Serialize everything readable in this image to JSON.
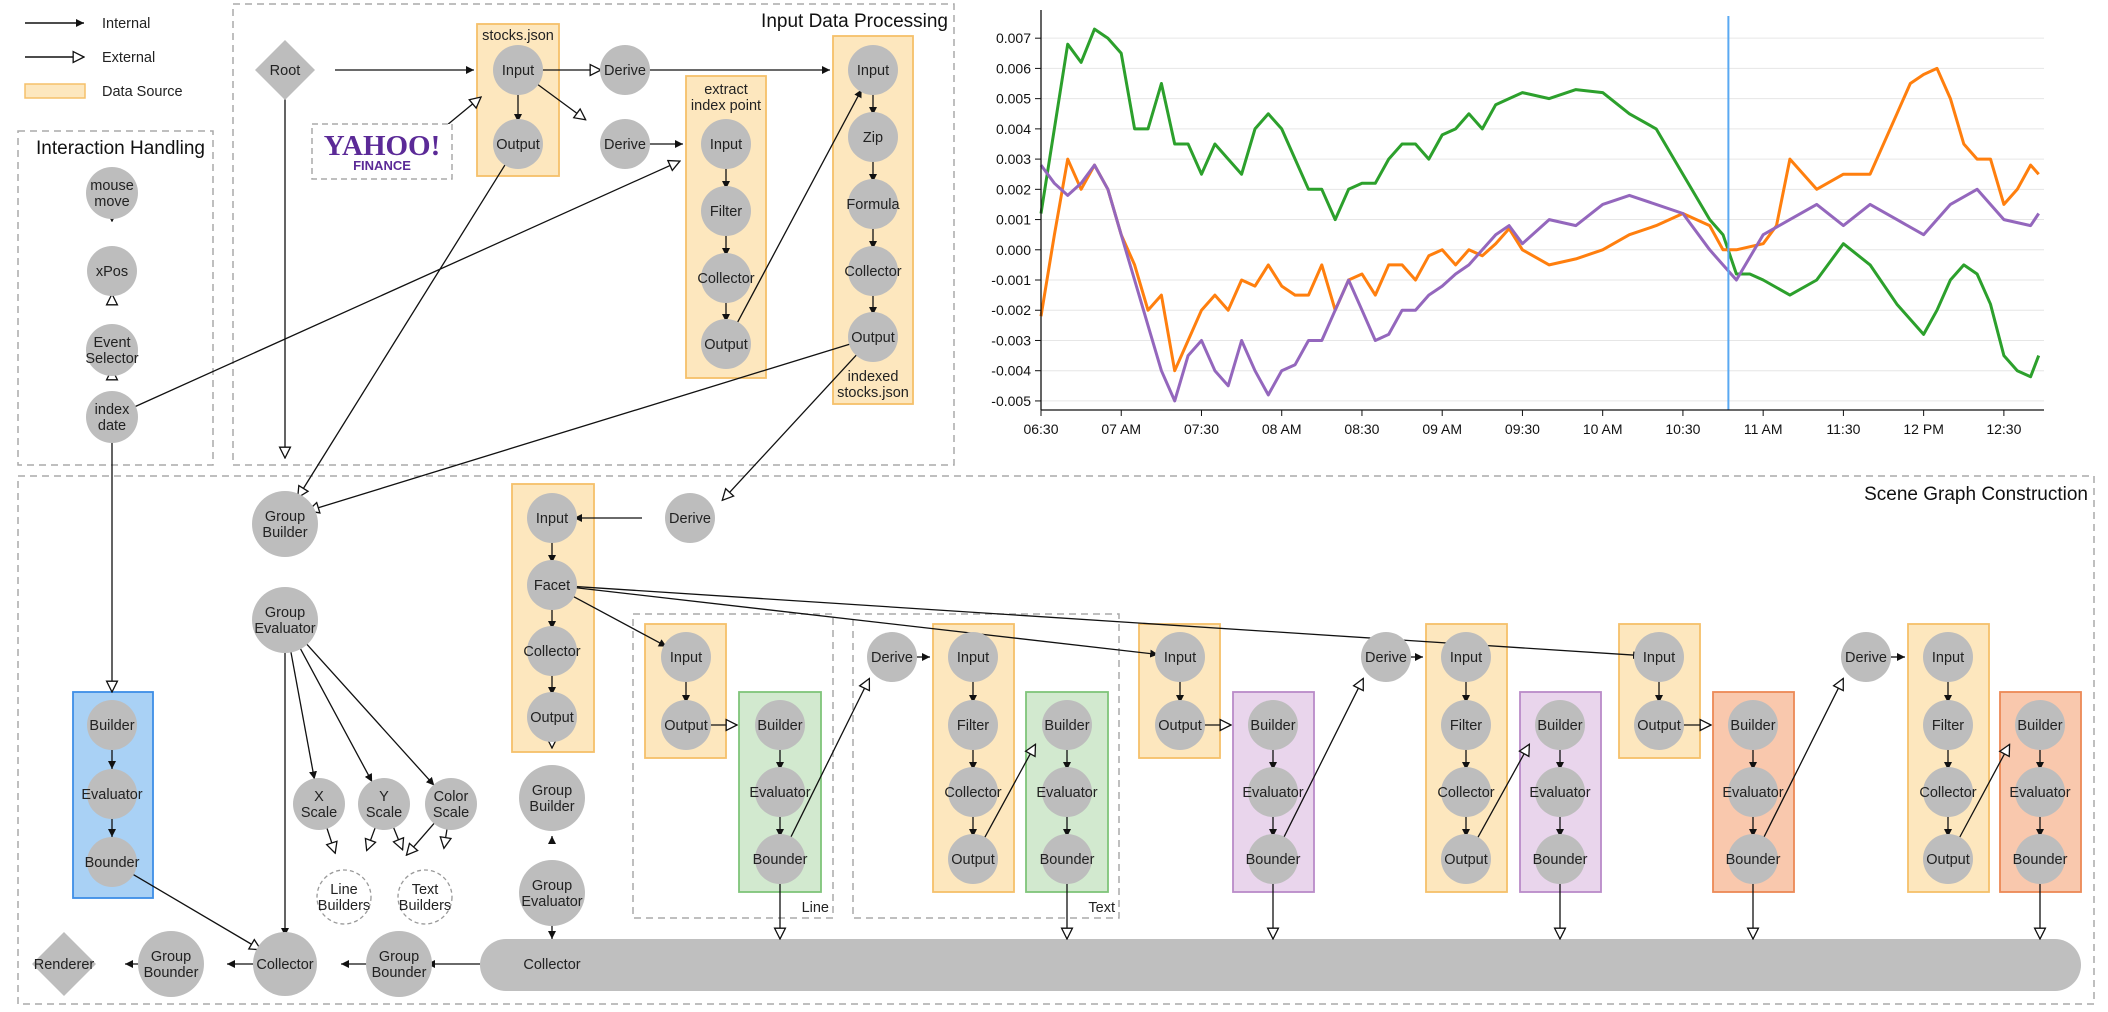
{
  "legend": {
    "internal": "Internal",
    "external": "External",
    "data_source": "Data Source"
  },
  "colors": {
    "node": "#bdbdbd",
    "data_source_fill": "#fde7be",
    "data_source_stroke": "#f5c06a",
    "blue_fill": "#a9d1f5",
    "blue_stroke": "#3d8ee6",
    "green_fill": "#d2e9cf",
    "green_stroke": "#7fc47a",
    "purple_fill": "#e9d5ec",
    "purple_stroke": "#b98ac8",
    "salmon_fill": "#f9c8ad",
    "salmon_stroke": "#ec8956",
    "collector_bar": "#bfbfbf",
    "series_green": "#2ca02c",
    "series_orange": "#ff7f0e",
    "series_purple": "#9467bd",
    "cursor_line": "#5aa9f2"
  },
  "panels": {
    "interaction": "Interaction Handling",
    "input": "Input Data Processing",
    "scene": "Scene Graph Construction"
  },
  "yahoo": {
    "logo": "YAHOO!",
    "sub": "FINANCE"
  },
  "group_labels": {
    "stocks_json": "stocks.json",
    "extract": [
      "extract",
      "index point"
    ],
    "indexed": [
      "indexed",
      "stocks.json"
    ],
    "line": "Line",
    "text": "Text"
  },
  "nodes": {
    "root": "Root",
    "renderer": "Renderer",
    "input": "Input",
    "output": "Output",
    "derive": "Derive",
    "filter": "Filter",
    "collector": "Collector",
    "zip": "Zip",
    "formula": "Formula",
    "facet": "Facet",
    "builder": "Builder",
    "evaluator": "Evaluator",
    "bounder": "Bounder",
    "mouse_move": [
      "mouse",
      "move"
    ],
    "xpos": "xPos",
    "event_selector": [
      "Event",
      "Selector"
    ],
    "index_date": [
      "index",
      "date"
    ],
    "group_builder": [
      "Group",
      "Builder"
    ],
    "group_evaluator": [
      "Group",
      "Evaluator"
    ],
    "group_bounder": [
      "Group",
      "Bounder"
    ],
    "x_scale": [
      "X",
      "Scale"
    ],
    "y_scale": [
      "Y",
      "Scale"
    ],
    "color_scale": [
      "Color",
      "Scale"
    ],
    "line_builders": [
      "Line",
      "Builders"
    ],
    "text_builders": [
      "Text",
      "Builders"
    ]
  },
  "chart_data": {
    "type": "line",
    "title": "",
    "xlabel": "",
    "ylabel": "",
    "x_ticks": [
      "06:30",
      "07 AM",
      "07:30",
      "08 AM",
      "08:30",
      "09 AM",
      "09:30",
      "10 AM",
      "10:30",
      "11 AM",
      "11:30",
      "12 PM",
      "12:30"
    ],
    "x_range_minutes": [
      0,
      375
    ],
    "y_ticks": [
      "0.007",
      "0.006",
      "0.005",
      "0.004",
      "0.003",
      "0.002",
      "0.001",
      "0.000",
      "-0.001",
      "-0.002",
      "-0.003",
      "-0.004",
      "-0.005"
    ],
    "ylim": [
      -0.0053,
      0.0078
    ],
    "grid": true,
    "cursor_time": "10:47",
    "series": [
      {
        "color": "#2ca02c",
        "x": [
          "06:30",
          "06:40",
          "06:45",
          "06:50",
          "06:55",
          "07:00",
          "07:05",
          "07:10",
          "07:15",
          "07:20",
          "07:25",
          "07:30",
          "07:35",
          "07:40",
          "07:45",
          "07:50",
          "07:55",
          "08:00",
          "08:05",
          "08:10",
          "08:15",
          "08:20",
          "08:25",
          "08:30",
          "08:35",
          "08:40",
          "08:45",
          "08:50",
          "08:55",
          "09:00",
          "09:05",
          "09:10",
          "09:15",
          "09:20",
          "09:25",
          "09:30",
          "09:40",
          "09:50",
          "10:00",
          "10:10",
          "10:20",
          "10:30",
          "10:40",
          "10:45",
          "10:50",
          "10:55",
          "11:00",
          "11:10",
          "11:20",
          "11:30",
          "11:40",
          "11:50",
          "12:00",
          "12:05",
          "12:10",
          "12:15",
          "12:20",
          "12:25",
          "12:30",
          "12:35",
          "12:40",
          "12:43"
        ],
        "y": [
          0.0012,
          0.0068,
          0.0062,
          0.0073,
          0.007,
          0.0065,
          0.004,
          0.004,
          0.0055,
          0.0035,
          0.0035,
          0.0025,
          0.0035,
          0.003,
          0.0025,
          0.004,
          0.0045,
          0.004,
          0.003,
          0.002,
          0.002,
          0.001,
          0.002,
          0.0022,
          0.0022,
          0.003,
          0.0035,
          0.0035,
          0.003,
          0.0038,
          0.004,
          0.0045,
          0.004,
          0.0048,
          0.005,
          0.0052,
          0.005,
          0.0053,
          0.0052,
          0.0045,
          0.004,
          0.0025,
          0.001,
          0.0005,
          -0.0008,
          -0.0008,
          -0.001,
          -0.0015,
          -0.001,
          0.0002,
          -0.0005,
          -0.0018,
          -0.0028,
          -0.002,
          -0.001,
          -0.0005,
          -0.0008,
          -0.0018,
          -0.0035,
          -0.004,
          -0.0042,
          -0.0035
        ]
      },
      {
        "color": "#ff7f0e",
        "x": [
          "06:30",
          "06:35",
          "06:40",
          "06:45",
          "06:50",
          "06:55",
          "07:00",
          "07:05",
          "07:10",
          "07:15",
          "07:20",
          "07:25",
          "07:30",
          "07:35",
          "07:40",
          "07:45",
          "07:50",
          "07:55",
          "08:00",
          "08:05",
          "08:10",
          "08:15",
          "08:20",
          "08:25",
          "08:30",
          "08:35",
          "08:40",
          "08:45",
          "08:50",
          "08:55",
          "09:00",
          "09:05",
          "09:10",
          "09:15",
          "09:20",
          "09:25",
          "09:30",
          "09:40",
          "09:50",
          "10:00",
          "10:10",
          "10:20",
          "10:30",
          "10:40",
          "10:45",
          "10:50",
          "11:00",
          "11:05",
          "11:10",
          "11:20",
          "11:30",
          "11:40",
          "11:50",
          "11:55",
          "12:00",
          "12:05",
          "12:10",
          "12:15",
          "12:20",
          "12:25",
          "12:30",
          "12:35",
          "12:40",
          "12:43"
        ],
        "y": [
          -0.0022,
          0.0005,
          0.003,
          0.002,
          0.0028,
          0.002,
          0.0005,
          -0.0005,
          -0.002,
          -0.0015,
          -0.004,
          -0.003,
          -0.002,
          -0.0015,
          -0.002,
          -0.001,
          -0.0012,
          -0.0005,
          -0.0012,
          -0.0015,
          -0.0015,
          -0.0005,
          -0.002,
          -0.001,
          -0.0008,
          -0.0015,
          -0.0005,
          -0.0005,
          -0.001,
          -0.0002,
          0.0,
          -0.0005,
          0.0,
          -0.0002,
          0.0002,
          0.0007,
          0.0,
          -0.0005,
          -0.0003,
          0.0,
          0.0005,
          0.0008,
          0.0012,
          0.0008,
          0.0,
          0.0,
          0.0002,
          0.0008,
          0.003,
          0.002,
          0.0025,
          0.0025,
          0.0045,
          0.0055,
          0.0058,
          0.006,
          0.005,
          0.0035,
          0.003,
          0.003,
          0.0015,
          0.002,
          0.0028,
          0.0025
        ]
      },
      {
        "color": "#9467bd",
        "x": [
          "06:30",
          "06:35",
          "06:40",
          "06:45",
          "06:50",
          "06:55",
          "07:00",
          "07:05",
          "07:10",
          "07:15",
          "07:20",
          "07:25",
          "07:30",
          "07:35",
          "07:40",
          "07:45",
          "07:50",
          "07:55",
          "08:00",
          "08:05",
          "08:10",
          "08:15",
          "08:20",
          "08:25",
          "08:30",
          "08:35",
          "08:40",
          "08:45",
          "08:50",
          "08:55",
          "09:00",
          "09:05",
          "09:10",
          "09:15",
          "09:20",
          "09:25",
          "09:30",
          "09:40",
          "09:50",
          "10:00",
          "10:10",
          "10:20",
          "10:30",
          "10:40",
          "10:45",
          "10:50",
          "11:00",
          "11:10",
          "11:20",
          "11:30",
          "11:40",
          "11:50",
          "12:00",
          "12:10",
          "12:20",
          "12:30",
          "12:40",
          "12:43"
        ],
        "y": [
          0.0028,
          0.0022,
          0.0018,
          0.0022,
          0.0028,
          0.002,
          0.0005,
          -0.001,
          -0.0025,
          -0.004,
          -0.005,
          -0.0035,
          -0.003,
          -0.004,
          -0.0045,
          -0.003,
          -0.004,
          -0.0048,
          -0.004,
          -0.0038,
          -0.003,
          -0.003,
          -0.002,
          -0.001,
          -0.002,
          -0.003,
          -0.0028,
          -0.002,
          -0.002,
          -0.0015,
          -0.0012,
          -0.0008,
          -0.0005,
          0.0,
          0.0005,
          0.0008,
          0.0002,
          0.001,
          0.0008,
          0.0015,
          0.0018,
          0.0015,
          0.0012,
          0.0,
          -0.0005,
          -0.001,
          0.0005,
          0.001,
          0.0015,
          0.0008,
          0.0015,
          0.001,
          0.0005,
          0.0015,
          0.002,
          0.001,
          0.0008,
          0.0012
        ]
      }
    ]
  }
}
